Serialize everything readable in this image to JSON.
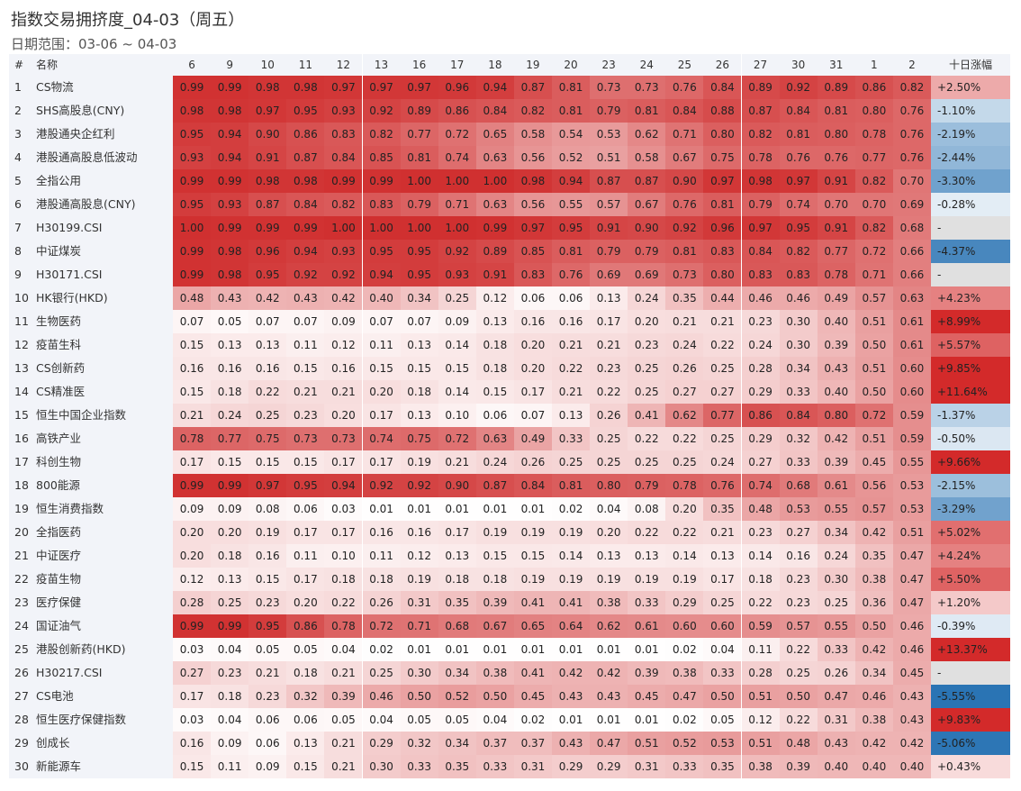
{
  "title": "指数交易拥挤度_04-03（周五）",
  "subtitle": "日期范围：03-06 ~ 04-03",
  "chart_data": {
    "type": "table",
    "columns": {
      "index": "#",
      "name": "名称",
      "dates": [
        "6",
        "9",
        "10",
        "11",
        "12",
        "13",
        "16",
        "17",
        "18",
        "19",
        "20",
        "23",
        "24",
        "25",
        "26",
        "27",
        "30",
        "31",
        "1",
        "2"
      ],
      "change": "十日涨幅"
    },
    "rows": [
      {
        "n": "1",
        "name": "CS物流",
        "v": [
          0.99,
          0.99,
          0.98,
          0.98,
          0.97,
          0.97,
          0.97,
          0.96,
          0.94,
          0.87,
          0.81,
          0.73,
          0.73,
          0.76,
          0.84,
          0.89,
          0.92,
          0.89,
          0.86,
          0.82
        ],
        "chg": "+2.50%",
        "chgv": 2.5
      },
      {
        "n": "2",
        "name": "SHS高股息(CNY)",
        "v": [
          0.98,
          0.98,
          0.97,
          0.95,
          0.93,
          0.92,
          0.89,
          0.86,
          0.84,
          0.82,
          0.81,
          0.79,
          0.81,
          0.84,
          0.88,
          0.87,
          0.84,
          0.81,
          0.8,
          0.76
        ],
        "chg": "-1.10%",
        "chgv": -1.1
      },
      {
        "n": "3",
        "name": "港股通央企红利",
        "v": [
          0.95,
          0.94,
          0.9,
          0.86,
          0.83,
          0.82,
          0.77,
          0.72,
          0.65,
          0.58,
          0.54,
          0.53,
          0.62,
          0.71,
          0.8,
          0.82,
          0.81,
          0.8,
          0.78,
          0.76
        ],
        "chg": "-2.19%",
        "chgv": -2.19
      },
      {
        "n": "4",
        "name": "港股通高股息低波动",
        "v": [
          0.93,
          0.94,
          0.91,
          0.87,
          0.84,
          0.85,
          0.81,
          0.74,
          0.63,
          0.56,
          0.52,
          0.51,
          0.58,
          0.67,
          0.75,
          0.78,
          0.76,
          0.76,
          0.77,
          0.76
        ],
        "chg": "-2.44%",
        "chgv": -2.44
      },
      {
        "n": "5",
        "name": "全指公用",
        "v": [
          0.99,
          0.99,
          0.98,
          0.98,
          0.99,
          0.99,
          1.0,
          1.0,
          1.0,
          0.98,
          0.94,
          0.87,
          0.87,
          0.9,
          0.97,
          0.98,
          0.97,
          0.91,
          0.82,
          0.7
        ],
        "chg": "-3.30%",
        "chgv": -3.3
      },
      {
        "n": "6",
        "name": "港股通高股息(CNY)",
        "v": [
          0.95,
          0.93,
          0.87,
          0.84,
          0.82,
          0.83,
          0.79,
          0.71,
          0.63,
          0.56,
          0.55,
          0.57,
          0.67,
          0.76,
          0.81,
          0.79,
          0.74,
          0.7,
          0.7,
          0.69
        ],
        "chg": "-0.28%",
        "chgv": -0.28
      },
      {
        "n": "7",
        "name": "H30199.CSI",
        "v": [
          1.0,
          0.99,
          0.99,
          0.99,
          1.0,
          1.0,
          1.0,
          1.0,
          0.99,
          0.97,
          0.95,
          0.91,
          0.9,
          0.92,
          0.96,
          0.97,
          0.95,
          0.91,
          0.82,
          0.68
        ],
        "chg": "-",
        "chgv": null
      },
      {
        "n": "8",
        "name": "中证煤炭",
        "v": [
          0.99,
          0.98,
          0.96,
          0.94,
          0.93,
          0.95,
          0.95,
          0.92,
          0.89,
          0.85,
          0.81,
          0.79,
          0.79,
          0.81,
          0.83,
          0.84,
          0.82,
          0.77,
          0.72,
          0.66
        ],
        "chg": "-4.37%",
        "chgv": -4.37
      },
      {
        "n": "9",
        "name": "H30171.CSI",
        "v": [
          0.99,
          0.98,
          0.95,
          0.92,
          0.92,
          0.94,
          0.95,
          0.93,
          0.91,
          0.83,
          0.76,
          0.69,
          0.69,
          0.73,
          0.8,
          0.83,
          0.83,
          0.78,
          0.71,
          0.66
        ],
        "chg": "-",
        "chgv": null
      },
      {
        "n": "10",
        "name": "HK银行(HKD)",
        "v": [
          0.48,
          0.43,
          0.42,
          0.43,
          0.42,
          0.4,
          0.34,
          0.25,
          0.12,
          0.06,
          0.06,
          0.13,
          0.24,
          0.35,
          0.44,
          0.46,
          0.46,
          0.49,
          0.57,
          0.63
        ],
        "chg": "+4.23%",
        "chgv": 4.23
      },
      {
        "n": "11",
        "name": "生物医药",
        "v": [
          0.07,
          0.05,
          0.07,
          0.07,
          0.09,
          0.07,
          0.07,
          0.09,
          0.13,
          0.16,
          0.16,
          0.17,
          0.2,
          0.21,
          0.21,
          0.23,
          0.3,
          0.4,
          0.51,
          0.61
        ],
        "chg": "+8.99%",
        "chgv": 8.99
      },
      {
        "n": "12",
        "name": "疫苗生科",
        "v": [
          0.15,
          0.13,
          0.13,
          0.11,
          0.12,
          0.11,
          0.13,
          0.14,
          0.18,
          0.2,
          0.21,
          0.21,
          0.23,
          0.24,
          0.22,
          0.24,
          0.3,
          0.39,
          0.5,
          0.61
        ],
        "chg": "+5.57%",
        "chgv": 5.57
      },
      {
        "n": "13",
        "name": "CS创新药",
        "v": [
          0.16,
          0.16,
          0.16,
          0.15,
          0.16,
          0.15,
          0.15,
          0.15,
          0.18,
          0.2,
          0.22,
          0.23,
          0.25,
          0.26,
          0.25,
          0.28,
          0.34,
          0.43,
          0.51,
          0.6
        ],
        "chg": "+9.85%",
        "chgv": 9.85
      },
      {
        "n": "14",
        "name": "CS精准医",
        "v": [
          0.15,
          0.18,
          0.22,
          0.21,
          0.21,
          0.2,
          0.18,
          0.14,
          0.15,
          0.17,
          0.21,
          0.22,
          0.25,
          0.27,
          0.27,
          0.29,
          0.33,
          0.4,
          0.5,
          0.6
        ],
        "chg": "+11.64%",
        "chgv": 11.64
      },
      {
        "n": "15",
        "name": "恒生中国企业指数",
        "v": [
          0.21,
          0.24,
          0.25,
          0.23,
          0.2,
          0.17,
          0.13,
          0.1,
          0.06,
          0.07,
          0.13,
          0.26,
          0.41,
          0.62,
          0.77,
          0.86,
          0.84,
          0.8,
          0.72,
          0.59
        ],
        "chg": "-1.37%",
        "chgv": -1.37
      },
      {
        "n": "16",
        "name": "高铁产业",
        "v": [
          0.78,
          0.77,
          0.75,
          0.73,
          0.73,
          0.74,
          0.75,
          0.72,
          0.63,
          0.49,
          0.33,
          0.25,
          0.22,
          0.22,
          0.25,
          0.29,
          0.32,
          0.42,
          0.51,
          0.59
        ],
        "chg": "-0.50%",
        "chgv": -0.5
      },
      {
        "n": "17",
        "name": "科创生物",
        "v": [
          0.17,
          0.15,
          0.15,
          0.15,
          0.17,
          0.17,
          0.19,
          0.21,
          0.24,
          0.26,
          0.25,
          0.25,
          0.25,
          0.25,
          0.24,
          0.27,
          0.33,
          0.39,
          0.45,
          0.55
        ],
        "chg": "+9.66%",
        "chgv": 9.66
      },
      {
        "n": "18",
        "name": "800能源",
        "v": [
          0.99,
          0.99,
          0.97,
          0.95,
          0.94,
          0.92,
          0.92,
          0.9,
          0.87,
          0.84,
          0.81,
          0.8,
          0.79,
          0.78,
          0.76,
          0.74,
          0.68,
          0.61,
          0.56,
          0.53
        ],
        "chg": "-2.15%",
        "chgv": -2.15
      },
      {
        "n": "19",
        "name": "恒生消费指数",
        "v": [
          0.09,
          0.09,
          0.08,
          0.06,
          0.03,
          0.01,
          0.01,
          0.01,
          0.01,
          0.01,
          0.02,
          0.04,
          0.08,
          0.2,
          0.35,
          0.48,
          0.53,
          0.55,
          0.57,
          0.53
        ],
        "chg": "-3.29%",
        "chgv": -3.29
      },
      {
        "n": "20",
        "name": "全指医药",
        "v": [
          0.2,
          0.2,
          0.19,
          0.17,
          0.17,
          0.16,
          0.16,
          0.17,
          0.19,
          0.19,
          0.19,
          0.2,
          0.22,
          0.22,
          0.21,
          0.23,
          0.27,
          0.34,
          0.42,
          0.51
        ],
        "chg": "+5.02%",
        "chgv": 5.02
      },
      {
        "n": "21",
        "name": "中证医疗",
        "v": [
          0.2,
          0.18,
          0.16,
          0.11,
          0.1,
          0.11,
          0.12,
          0.13,
          0.15,
          0.15,
          0.14,
          0.13,
          0.13,
          0.14,
          0.13,
          0.14,
          0.16,
          0.24,
          0.35,
          0.47
        ],
        "chg": "+4.24%",
        "chgv": 4.24
      },
      {
        "n": "22",
        "name": "疫苗生物",
        "v": [
          0.12,
          0.13,
          0.15,
          0.17,
          0.18,
          0.18,
          0.19,
          0.18,
          0.18,
          0.19,
          0.19,
          0.19,
          0.19,
          0.19,
          0.17,
          0.18,
          0.23,
          0.3,
          0.38,
          0.47
        ],
        "chg": "+5.50%",
        "chgv": 5.5
      },
      {
        "n": "23",
        "name": "医疗保健",
        "v": [
          0.28,
          0.25,
          0.23,
          0.2,
          0.22,
          0.26,
          0.31,
          0.35,
          0.39,
          0.41,
          0.41,
          0.38,
          0.33,
          0.29,
          0.25,
          0.22,
          0.23,
          0.25,
          0.36,
          0.47
        ],
        "chg": "+1.20%",
        "chgv": 1.2
      },
      {
        "n": "24",
        "name": "国证油气",
        "v": [
          0.99,
          0.99,
          0.95,
          0.86,
          0.78,
          0.72,
          0.71,
          0.68,
          0.67,
          0.65,
          0.64,
          0.62,
          0.61,
          0.6,
          0.6,
          0.59,
          0.57,
          0.55,
          0.5,
          0.46
        ],
        "chg": "-0.39%",
        "chgv": -0.39
      },
      {
        "n": "25",
        "name": "港股创新药(HKD)",
        "v": [
          0.03,
          0.04,
          0.05,
          0.05,
          0.04,
          0.02,
          0.01,
          0.01,
          0.01,
          0.01,
          0.01,
          0.01,
          0.01,
          0.02,
          0.04,
          0.11,
          0.22,
          0.33,
          0.42,
          0.46
        ],
        "chg": "+13.37%",
        "chgv": 13.37
      },
      {
        "n": "26",
        "name": "H30217.CSI",
        "v": [
          0.27,
          0.23,
          0.21,
          0.18,
          0.21,
          0.25,
          0.3,
          0.34,
          0.38,
          0.41,
          0.42,
          0.42,
          0.39,
          0.38,
          0.33,
          0.28,
          0.25,
          0.26,
          0.34,
          0.45
        ],
        "chg": "-",
        "chgv": null
      },
      {
        "n": "27",
        "name": "CS电池",
        "v": [
          0.17,
          0.18,
          0.23,
          0.32,
          0.39,
          0.46,
          0.5,
          0.52,
          0.5,
          0.45,
          0.43,
          0.43,
          0.45,
          0.47,
          0.5,
          0.51,
          0.5,
          0.47,
          0.46,
          0.43
        ],
        "chg": "-5.55%",
        "chgv": -5.55
      },
      {
        "n": "28",
        "name": "恒生医疗保健指数",
        "v": [
          0.03,
          0.04,
          0.06,
          0.06,
          0.05,
          0.04,
          0.05,
          0.05,
          0.04,
          0.02,
          0.01,
          0.01,
          0.01,
          0.02,
          0.05,
          0.12,
          0.22,
          0.31,
          0.38,
          0.43
        ],
        "chg": "+9.83%",
        "chgv": 9.83
      },
      {
        "n": "29",
        "name": "创成长",
        "v": [
          0.16,
          0.09,
          0.06,
          0.13,
          0.21,
          0.29,
          0.32,
          0.34,
          0.37,
          0.37,
          0.43,
          0.47,
          0.51,
          0.52,
          0.53,
          0.51,
          0.48,
          0.43,
          0.42,
          0.42
        ],
        "chg": "-5.06%",
        "chgv": -5.06
      },
      {
        "n": "30",
        "name": "新能源车",
        "v": [
          0.15,
          0.11,
          0.09,
          0.15,
          0.21,
          0.3,
          0.33,
          0.35,
          0.33,
          0.31,
          0.29,
          0.29,
          0.31,
          0.33,
          0.35,
          0.38,
          0.39,
          0.4,
          0.4,
          0.4
        ],
        "chg": "+0.43%",
        "chgv": 0.43
      }
    ],
    "colors": {
      "high": "#d03030",
      "low": "#ffffff",
      "up": "#d32a2a",
      "down": "#2a74b4",
      "missing": "#e0e0e0"
    }
  }
}
